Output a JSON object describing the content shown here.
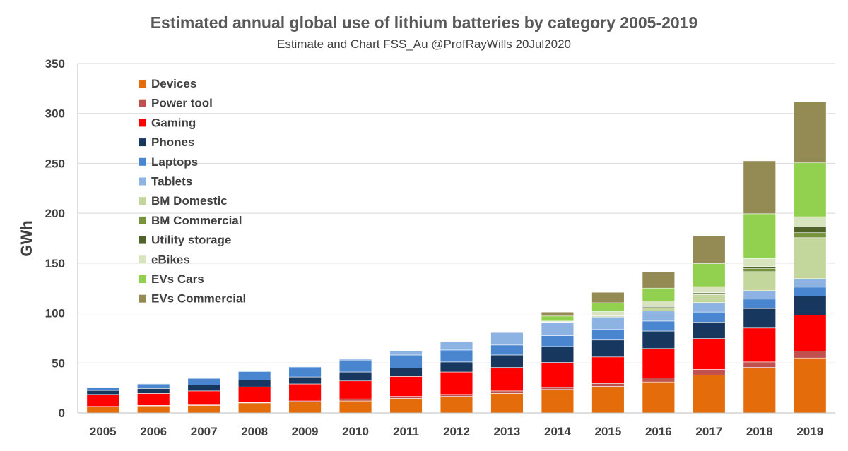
{
  "chart_data": {
    "type": "bar",
    "stacked": true,
    "title": "Estimated annual global use of lithium batteries by category 2005-2019",
    "subtitle": "Estimate and Chart FSS_Au @ProfRayWills 20Jul2020",
    "ylabel": "GWh",
    "xlabel": "",
    "ylim": [
      0,
      350
    ],
    "yticks": [
      0,
      50,
      100,
      150,
      200,
      250,
      300,
      350
    ],
    "grid": true,
    "legend_position": "top-left",
    "categories": [
      "2005",
      "2006",
      "2007",
      "2008",
      "2009",
      "2010",
      "2011",
      "2012",
      "2013",
      "2014",
      "2015",
      "2016",
      "2017",
      "2018",
      "2019"
    ],
    "series": [
      {
        "name": "Devices",
        "color": "#E46C0A",
        "values": [
          6,
          7,
          7.5,
          10,
          11,
          12,
          14.5,
          16.5,
          19.5,
          23.5,
          26.5,
          31,
          38,
          45.5,
          55
        ]
      },
      {
        "name": "Power tool",
        "color": "#C0504D",
        "values": [
          0.5,
          0.5,
          0.5,
          0.5,
          1,
          2,
          2,
          2,
          2.5,
          2,
          3,
          4,
          5.5,
          5.5,
          7
        ]
      },
      {
        "name": "Gaming",
        "color": "#FF0000",
        "values": [
          12,
          12,
          14,
          15.5,
          17,
          18,
          20,
          22.5,
          23.5,
          25,
          26.5,
          29.5,
          31,
          34,
          36
        ]
      },
      {
        "name": "Phones",
        "color": "#17375E",
        "values": [
          4,
          5,
          6,
          7,
          7,
          9,
          8.5,
          10,
          12.5,
          16,
          17,
          17.5,
          16.5,
          19.5,
          19
        ]
      },
      {
        "name": "Laptops",
        "color": "#4A86CF",
        "values": [
          2.5,
          4.5,
          6.5,
          8.5,
          10,
          12,
          13,
          12,
          10,
          11,
          10.5,
          10,
          10,
          9.5,
          9
        ]
      },
      {
        "name": "Tablets",
        "color": "#8DB3E2",
        "values": [
          0.5,
          0.5,
          0.5,
          0.5,
          0.5,
          1,
          4,
          8,
          12.5,
          12.5,
          12.5,
          10,
          9.5,
          8.5,
          8.5
        ]
      },
      {
        "name": "BM Domestic",
        "color": "#C3D69B",
        "values": [
          0,
          0,
          0,
          0,
          0,
          0,
          0,
          0,
          0,
          0.5,
          1,
          3,
          8,
          19,
          41
        ]
      },
      {
        "name": "BM Commercial",
        "color": "#77933C",
        "values": [
          0,
          0,
          0,
          0,
          0,
          0,
          0,
          0,
          0,
          0.2,
          0.3,
          0.5,
          1,
          3,
          5
        ]
      },
      {
        "name": "Utility storage",
        "color": "#4F6228",
        "values": [
          0,
          0,
          0,
          0,
          0,
          0,
          0,
          0,
          0.5,
          0.5,
          0.5,
          1,
          1,
          2,
          6
        ]
      },
      {
        "name": "eBikes",
        "color": "#D7E4BD",
        "values": [
          0,
          0,
          0,
          0,
          0,
          0,
          0,
          0,
          0,
          0.8,
          4,
          5.5,
          6,
          8,
          10
        ]
      },
      {
        "name": "EVs Cars",
        "color": "#92D050",
        "values": [
          0,
          0,
          0,
          0,
          0,
          0,
          0,
          0.5,
          0.5,
          5,
          8.5,
          13,
          23,
          45,
          54
        ]
      },
      {
        "name": "EVs Commercial",
        "color": "#948A54",
        "values": [
          0,
          0,
          0,
          0,
          0,
          0,
          0,
          0,
          0,
          4,
          10.5,
          16,
          27.5,
          53,
          61
        ]
      }
    ]
  }
}
